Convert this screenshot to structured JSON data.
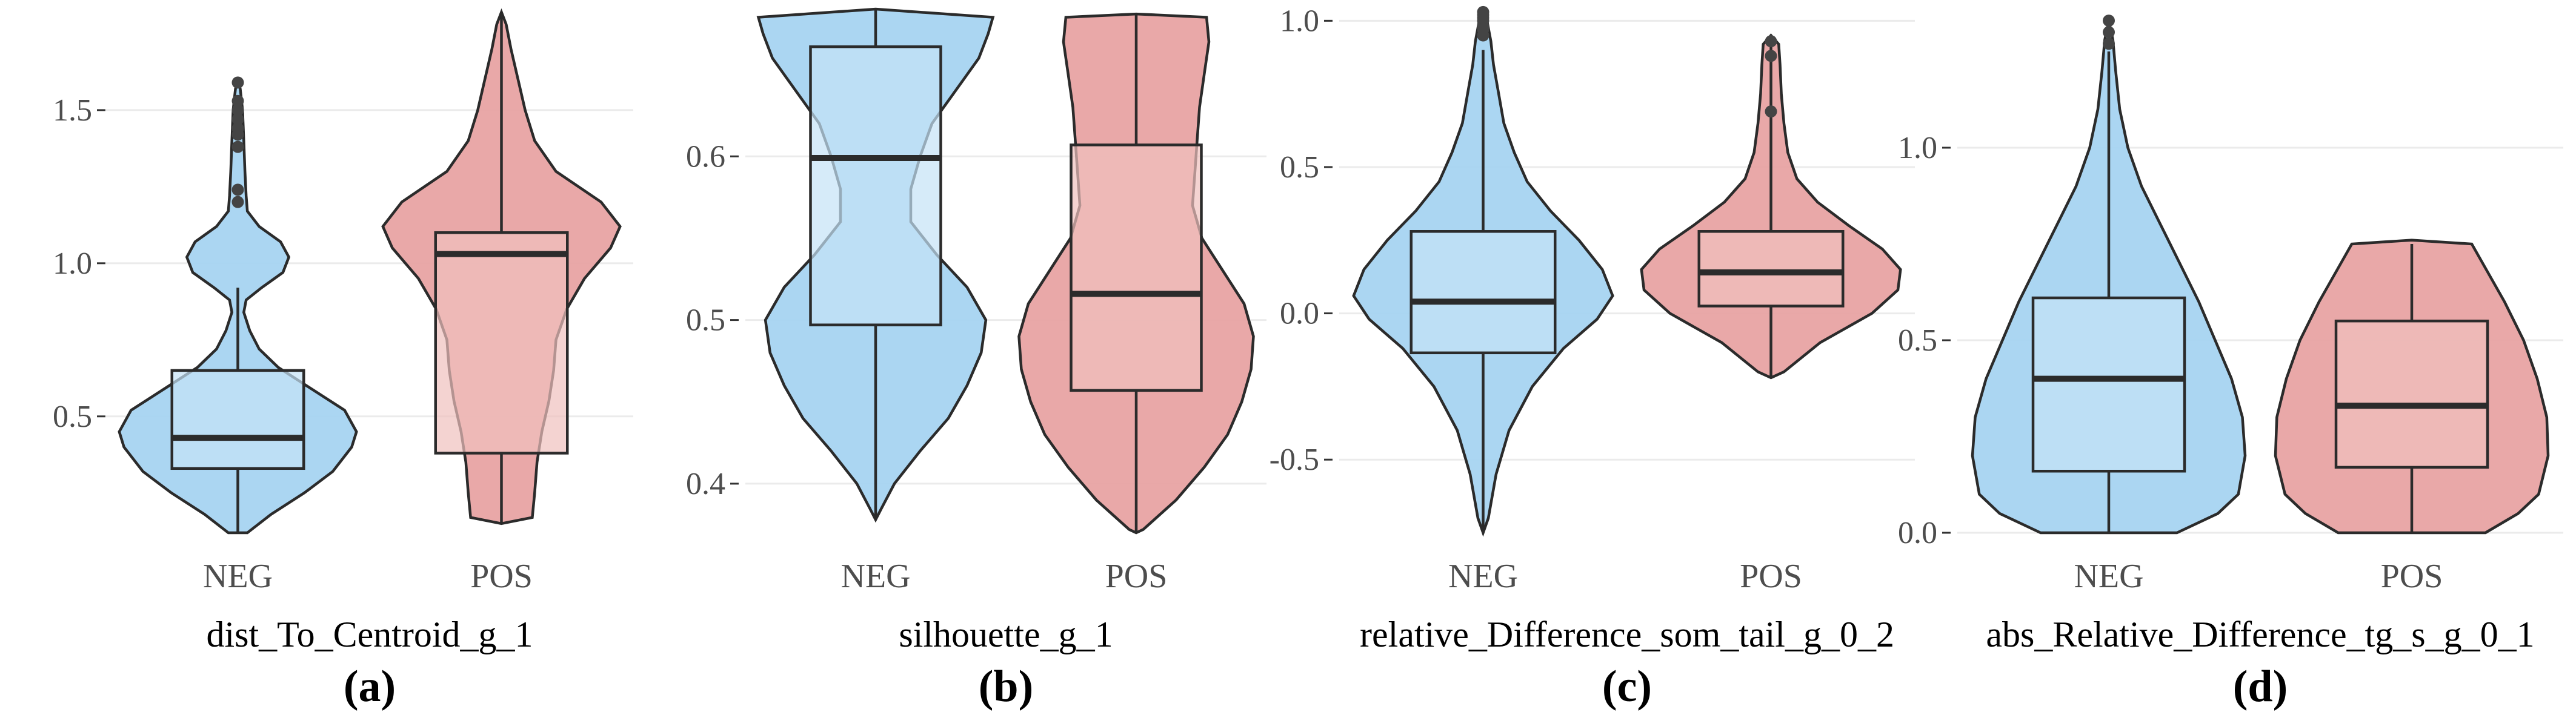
{
  "colors": {
    "NEG": "#a6d4f1",
    "POS": "#e8a3a3",
    "NEG_box": "#c5e3f6",
    "POS_box": "#f0c0be"
  },
  "chart_data": [
    {
      "type": "violin",
      "tag": "(a)",
      "xlabel": "dist_To_Centroid_g_1",
      "categories": [
        "NEG",
        "POS"
      ],
      "ylim": [
        0.12,
        1.82
      ],
      "yticks": [
        0.5,
        1.0,
        1.5
      ],
      "ytick_labels": [
        "0.5",
        "1.0",
        "1.5"
      ],
      "grid": true,
      "series": [
        {
          "name": "NEG",
          "max_width": 0.45,
          "density": [
            [
              0.12,
              0.08
            ],
            [
              0.18,
              0.28
            ],
            [
              0.25,
              0.56
            ],
            [
              0.32,
              0.8
            ],
            [
              0.4,
              0.96
            ],
            [
              0.45,
              1.0
            ],
            [
              0.52,
              0.9
            ],
            [
              0.6,
              0.58
            ],
            [
              0.66,
              0.34
            ],
            [
              0.72,
              0.18
            ],
            [
              0.78,
              0.1
            ],
            [
              0.84,
              0.05
            ],
            [
              0.88,
              0.07
            ],
            [
              0.92,
              0.2
            ],
            [
              0.97,
              0.38
            ],
            [
              1.02,
              0.43
            ],
            [
              1.07,
              0.36
            ],
            [
              1.12,
              0.18
            ],
            [
              1.17,
              0.08
            ],
            [
              1.22,
              0.07
            ],
            [
              1.3,
              0.06
            ],
            [
              1.4,
              0.05
            ],
            [
              1.5,
              0.04
            ],
            [
              1.57,
              0.02
            ],
            [
              1.6,
              0.0
            ]
          ],
          "box": {
            "q1": 0.33,
            "median": 0.43,
            "q3": 0.65,
            "whisker_low": 0.12,
            "whisker_high": 0.92
          },
          "outliers": [
            1.2,
            1.24,
            1.38,
            1.42,
            1.44,
            1.47,
            1.5,
            1.53,
            1.59
          ]
        },
        {
          "name": "POS",
          "max_width": 0.45,
          "density": [
            [
              0.15,
              0.0
            ],
            [
              0.17,
              0.26
            ],
            [
              0.25,
              0.28
            ],
            [
              0.35,
              0.3
            ],
            [
              0.45,
              0.34
            ],
            [
              0.55,
              0.4
            ],
            [
              0.65,
              0.44
            ],
            [
              0.75,
              0.46
            ],
            [
              0.85,
              0.55
            ],
            [
              0.95,
              0.7
            ],
            [
              1.05,
              0.92
            ],
            [
              1.12,
              1.0
            ],
            [
              1.2,
              0.84
            ],
            [
              1.3,
              0.46
            ],
            [
              1.4,
              0.28
            ],
            [
              1.5,
              0.2
            ],
            [
              1.6,
              0.14
            ],
            [
              1.7,
              0.08
            ],
            [
              1.78,
              0.04
            ],
            [
              1.82,
              0.0
            ]
          ],
          "box": {
            "q1": 0.38,
            "median": 1.03,
            "q3": 1.1,
            "whisker_low": 0.15,
            "whisker_high": 1.82
          },
          "outliers": []
        }
      ]
    },
    {
      "type": "violin",
      "tag": "(b)",
      "xlabel": "silhouette_g_1",
      "categories": [
        "NEG",
        "POS"
      ],
      "ylim": [
        0.37,
        0.69
      ],
      "yticks": [
        0.4,
        0.5,
        0.6
      ],
      "ytick_labels": [
        "0.4",
        "0.5",
        "0.6"
      ],
      "grid": true,
      "series": [
        {
          "name": "NEG",
          "max_width": 0.45,
          "density": [
            [
              0.378,
              0.0
            ],
            [
              0.385,
              0.05
            ],
            [
              0.4,
              0.16
            ],
            [
              0.42,
              0.38
            ],
            [
              0.44,
              0.62
            ],
            [
              0.46,
              0.78
            ],
            [
              0.48,
              0.9
            ],
            [
              0.5,
              0.94
            ],
            [
              0.52,
              0.78
            ],
            [
              0.54,
              0.52
            ],
            [
              0.56,
              0.3
            ],
            [
              0.58,
              0.3
            ],
            [
              0.6,
              0.38
            ],
            [
              0.62,
              0.48
            ],
            [
              0.64,
              0.68
            ],
            [
              0.66,
              0.88
            ],
            [
              0.675,
              0.96
            ],
            [
              0.685,
              1.0
            ],
            [
              0.69,
              0.0
            ]
          ],
          "box": {
            "q1": 0.497,
            "median": 0.599,
            "q3": 0.667,
            "whisker_low": 0.378,
            "whisker_high": 0.69
          },
          "outliers": []
        },
        {
          "name": "POS",
          "max_width": 0.45,
          "density": [
            [
              0.37,
              0.0
            ],
            [
              0.372,
              0.06
            ],
            [
              0.39,
              0.34
            ],
            [
              0.41,
              0.58
            ],
            [
              0.43,
              0.78
            ],
            [
              0.45,
              0.9
            ],
            [
              0.47,
              0.98
            ],
            [
              0.49,
              1.0
            ],
            [
              0.51,
              0.92
            ],
            [
              0.53,
              0.74
            ],
            [
              0.55,
              0.56
            ],
            [
              0.57,
              0.48
            ],
            [
              0.59,
              0.5
            ],
            [
              0.61,
              0.52
            ],
            [
              0.63,
              0.54
            ],
            [
              0.65,
              0.58
            ],
            [
              0.67,
              0.62
            ],
            [
              0.685,
              0.6
            ],
            [
              0.687,
              0.0
            ]
          ],
          "box": {
            "q1": 0.457,
            "median": 0.516,
            "q3": 0.607,
            "whisker_low": 0.37,
            "whisker_high": 0.687
          },
          "outliers": []
        }
      ]
    },
    {
      "type": "violin",
      "tag": "(c)",
      "xlabel": "relative_Difference_som_tail_g_0_2",
      "categories": [
        "NEG",
        "POS"
      ],
      "ylim": [
        -0.75,
        1.04
      ],
      "yticks": [
        -0.5,
        0.0,
        0.5,
        1.0
      ],
      "ytick_labels": [
        "-0.5",
        "0.0",
        "0.5",
        "1.0"
      ],
      "grid": true,
      "series": [
        {
          "name": "NEG",
          "max_width": 0.45,
          "density": [
            [
              -0.75,
              0.0
            ],
            [
              -0.7,
              0.04
            ],
            [
              -0.55,
              0.1
            ],
            [
              -0.4,
              0.2
            ],
            [
              -0.25,
              0.38
            ],
            [
              -0.12,
              0.62
            ],
            [
              -0.02,
              0.88
            ],
            [
              0.06,
              1.0
            ],
            [
              0.15,
              0.92
            ],
            [
              0.25,
              0.74
            ],
            [
              0.35,
              0.52
            ],
            [
              0.45,
              0.34
            ],
            [
              0.55,
              0.24
            ],
            [
              0.65,
              0.16
            ],
            [
              0.75,
              0.12
            ],
            [
              0.85,
              0.08
            ],
            [
              0.93,
              0.06
            ],
            [
              1.0,
              0.03
            ],
            [
              1.02,
              0.0
            ]
          ],
          "box": {
            "q1": -0.135,
            "median": 0.04,
            "q3": 0.28,
            "whisker_low": -0.75,
            "whisker_high": 0.9
          },
          "outliers": [
            0.95,
            0.97,
            0.98,
            1.0,
            1.01,
            1.02,
            1.03
          ]
        },
        {
          "name": "POS",
          "max_width": 0.45,
          "density": [
            [
              -0.22,
              0.0
            ],
            [
              -0.2,
              0.1
            ],
            [
              -0.1,
              0.38
            ],
            [
              0.0,
              0.78
            ],
            [
              0.08,
              0.98
            ],
            [
              0.15,
              1.0
            ],
            [
              0.22,
              0.86
            ],
            [
              0.3,
              0.6
            ],
            [
              0.38,
              0.36
            ],
            [
              0.46,
              0.2
            ],
            [
              0.55,
              0.13
            ],
            [
              0.65,
              0.1
            ],
            [
              0.75,
              0.08
            ],
            [
              0.85,
              0.07
            ],
            [
              0.92,
              0.06
            ],
            [
              0.95,
              0.0
            ]
          ],
          "box": {
            "q1": 0.025,
            "median": 0.14,
            "q3": 0.28,
            "whisker_low": -0.22,
            "whisker_high": 0.93
          },
          "outliers": [
            0.69,
            0.88,
            0.93
          ]
        }
      ]
    },
    {
      "type": "violin",
      "tag": "(d)",
      "xlabel": "abs_Relative_Difference_tg_s_g_0_1",
      "categories": [
        "NEG",
        "POS"
      ],
      "ylim": [
        0.0,
        1.36
      ],
      "yticks": [
        0.0,
        0.5,
        1.0
      ],
      "ytick_labels": [
        "0.0",
        "0.5",
        "1.0"
      ],
      "grid": true,
      "series": [
        {
          "name": "NEG",
          "max_width": 0.45,
          "density": [
            [
              0.0,
              0.5
            ],
            [
              0.05,
              0.8
            ],
            [
              0.1,
              0.95
            ],
            [
              0.2,
              1.0
            ],
            [
              0.3,
              0.98
            ],
            [
              0.4,
              0.9
            ],
            [
              0.5,
              0.78
            ],
            [
              0.6,
              0.66
            ],
            [
              0.7,
              0.52
            ],
            [
              0.8,
              0.38
            ],
            [
              0.9,
              0.24
            ],
            [
              1.0,
              0.14
            ],
            [
              1.1,
              0.08
            ],
            [
              1.2,
              0.05
            ],
            [
              1.28,
              0.03
            ],
            [
              1.33,
              0.0
            ]
          ],
          "box": {
            "q1": 0.16,
            "median": 0.4,
            "q3": 0.61,
            "whisker_low": 0.0,
            "whisker_high": 1.25
          },
          "outliers": [
            1.27,
            1.3,
            1.33
          ]
        },
        {
          "name": "POS",
          "max_width": 0.45,
          "density": [
            [
              0.0,
              0.54
            ],
            [
              0.05,
              0.78
            ],
            [
              0.1,
              0.93
            ],
            [
              0.2,
              1.0
            ],
            [
              0.3,
              0.99
            ],
            [
              0.4,
              0.92
            ],
            [
              0.5,
              0.82
            ],
            [
              0.6,
              0.68
            ],
            [
              0.7,
              0.52
            ],
            [
              0.75,
              0.44
            ],
            [
              0.76,
              0.0
            ]
          ],
          "box": {
            "q1": 0.17,
            "median": 0.33,
            "q3": 0.55,
            "whisker_low": 0.0,
            "whisker_high": 0.75
          },
          "outliers": []
        }
      ]
    }
  ]
}
